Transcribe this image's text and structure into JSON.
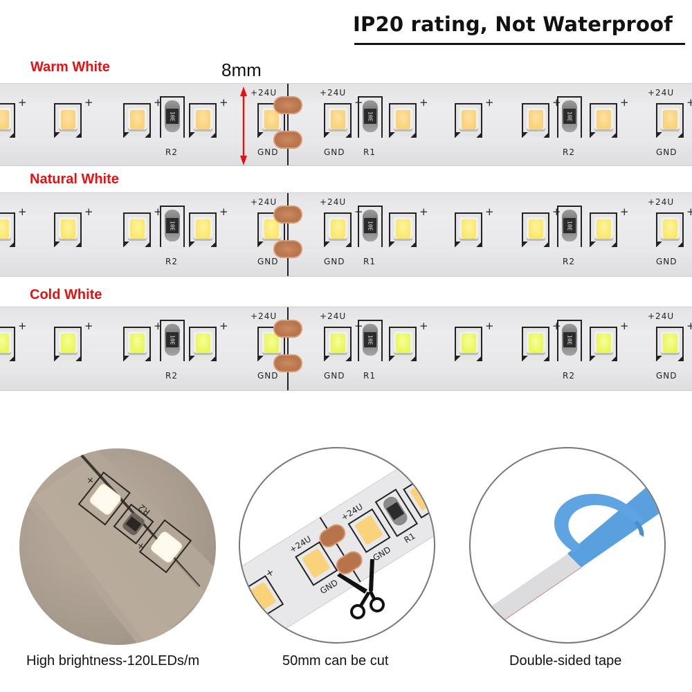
{
  "header": {
    "title": "IP20 rating, Not Waterproof"
  },
  "dimension": {
    "label": "8mm",
    "arrow_color": "#e81010"
  },
  "strips": [
    {
      "label": "Warm White",
      "label_color": "#e81010",
      "led_color": "#f9d27a",
      "led_highlight": "#fde2a0",
      "silkscreen": {
        "voltage_left": "+24U",
        "voltage_right": "+24U",
        "voltage_far": "+24U",
        "gnd_left": "GND",
        "gnd_right": "GND",
        "gnd_far": "GND",
        "r_left": "R2",
        "r_mid": "R1",
        "r_right": "R2",
        "resistor_code": "10E",
        "plus": "+"
      }
    },
    {
      "label": "Natural White",
      "label_color": "#e81010",
      "led_color": "#fbe86a",
      "led_highlight": "#fff3a0",
      "silkscreen": {
        "voltage_left": "+24U",
        "voltage_right": "+24U",
        "voltage_far": "+24U",
        "gnd_left": "GND",
        "gnd_right": "GND",
        "gnd_far": "GND",
        "r_left": "R2",
        "r_mid": "R1",
        "r_right": "R2",
        "resistor_code": "10E",
        "plus": "+"
      }
    },
    {
      "label": "Cold White",
      "label_color": "#e81010",
      "led_color": "#eaf75a",
      "led_highlight": "#f5ff9a",
      "silkscreen": {
        "voltage_left": "+24U",
        "voltage_right": "+24U",
        "voltage_far": "+24U",
        "gnd_left": "GND",
        "gnd_right": "GND",
        "gnd_far": "GND",
        "r_left": "R2",
        "r_mid": "R1",
        "r_right": "R2",
        "resistor_code": "10E",
        "plus": "+"
      }
    }
  ],
  "features": [
    {
      "caption": "High brightness-120LEDs/m",
      "image": "lit-led-strip-closeup",
      "silk_label": "R2"
    },
    {
      "caption": "50mm can be cut",
      "image": "cut-point-with-scissors",
      "silk_labels": [
        "+24U",
        "+24U",
        "GND",
        "GND",
        "R1"
      ]
    },
    {
      "caption": "Double-sided tape",
      "image": "peeled-blue-adhesive-tape"
    }
  ]
}
